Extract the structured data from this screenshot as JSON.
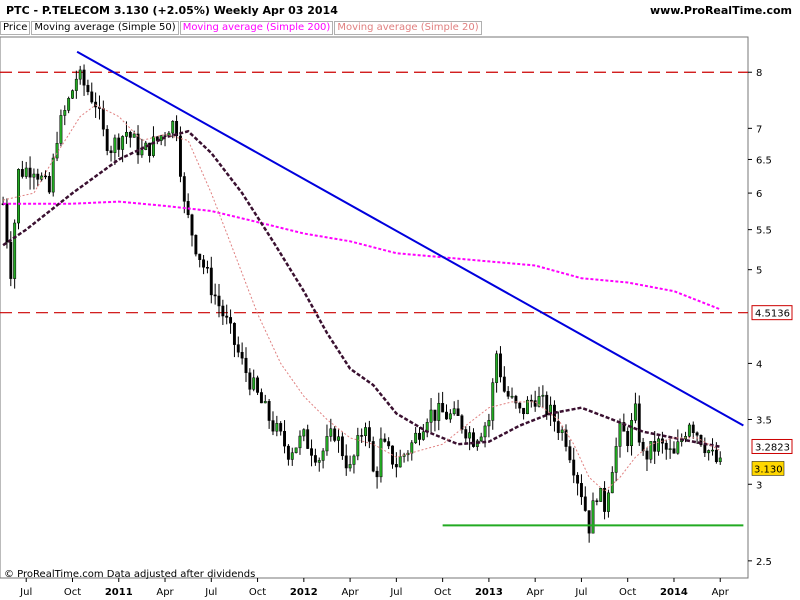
{
  "header": {
    "title": "PTC - P.TELECOM    3.130 (+2.05%)    Weekly  Apr 03 2014",
    "site": "www.ProRealTime.com"
  },
  "legend": [
    {
      "label": "Price",
      "color": "#000000"
    },
    {
      "label": "Moving average (Simple 50)",
      "color": "#000000"
    },
    {
      "label": "Moving average (Simple 200)",
      "color": "#ff00ff"
    },
    {
      "label": "Moving average (Simple 20)",
      "color": "#e08080"
    }
  ],
  "footer": "© ProRealTime.com Data adjusted after dividends",
  "chart_data": {
    "type": "candlestick",
    "y_scale": "log",
    "ylim": [
      2.4,
      8.7
    ],
    "y_ticks": [
      "2.5",
      "3",
      "3.5",
      "4",
      "5",
      "5.5",
      "6",
      "6.5",
      "7",
      "8"
    ],
    "x_ticks": [
      {
        "label": "Jul",
        "t": 0.0,
        "bold": false
      },
      {
        "label": "Oct",
        "t": 3.0,
        "bold": false
      },
      {
        "label": "2011",
        "t": 6.0,
        "bold": true
      },
      {
        "label": "Apr",
        "t": 9.0,
        "bold": false
      },
      {
        "label": "Jul",
        "t": 12.0,
        "bold": false
      },
      {
        "label": "Oct",
        "t": 15.0,
        "bold": false
      },
      {
        "label": "2012",
        "t": 18.0,
        "bold": true
      },
      {
        "label": "Apr",
        "t": 21.0,
        "bold": false
      },
      {
        "label": "Jul",
        "t": 24.0,
        "bold": false
      },
      {
        "label": "Oct",
        "t": 27.0,
        "bold": false
      },
      {
        "label": "2013",
        "t": 30.0,
        "bold": true
      },
      {
        "label": "Apr",
        "t": 33.0,
        "bold": false
      },
      {
        "label": "Jul",
        "t": 36.0,
        "bold": false
      },
      {
        "label": "Oct",
        "t": 39.0,
        "bold": false
      },
      {
        "label": "2014",
        "t": 42.0,
        "bold": true
      },
      {
        "label": "Apr",
        "t": 45.0,
        "bold": false
      }
    ],
    "price_label": {
      "value": 3.13,
      "text": "3.130",
      "bg": "#ffd700"
    },
    "labels": [
      {
        "value": 4.5136,
        "text": "4.5136",
        "color": "#cc0000"
      },
      {
        "value": 3.2823,
        "text": "3.2823",
        "color": "#cc0000"
      }
    ],
    "h_lines": [
      {
        "value": 8.0,
        "color": "#cc0000",
        "dashed": true
      },
      {
        "value": 4.5136,
        "color": "#cc0000",
        "dashed": true
      }
    ],
    "support_line": {
      "t_from": 27.0,
      "t_to": 46.5,
      "value": 2.72,
      "color": "#22aa22"
    },
    "trend_line": {
      "t_from": 3.3,
      "value_from": 8.4,
      "t_to": 46.5,
      "value_to": 3.45,
      "color": "#0000dd"
    },
    "candle_anchors": [
      [
        -1.5,
        5.85
      ],
      [
        -1.0,
        5.0
      ],
      [
        -0.5,
        6.3
      ],
      [
        0.5,
        6.4
      ],
      [
        1.5,
        6.0
      ],
      [
        2.0,
        6.9
      ],
      [
        2.8,
        7.5
      ],
      [
        3.3,
        7.95
      ],
      [
        4.5,
        7.45
      ],
      [
        5.0,
        6.9
      ],
      [
        5.5,
        6.7
      ],
      [
        6.5,
        6.95
      ],
      [
        7.5,
        6.6
      ],
      [
        8.5,
        6.8
      ],
      [
        9.4,
        7.1
      ],
      [
        9.8,
        7.0
      ],
      [
        10.2,
        5.85
      ],
      [
        11.0,
        5.3
      ],
      [
        12.0,
        4.8
      ],
      [
        13.0,
        4.4
      ],
      [
        14.0,
        4.0
      ],
      [
        15.0,
        3.7
      ],
      [
        16.0,
        3.45
      ],
      [
        17.0,
        3.25
      ],
      [
        18.0,
        3.35
      ],
      [
        19.0,
        3.2
      ],
      [
        20.0,
        3.4
      ],
      [
        21.0,
        3.1
      ],
      [
        22.0,
        3.5
      ],
      [
        22.6,
        3.0
      ],
      [
        23.0,
        3.3
      ],
      [
        24.0,
        3.15
      ],
      [
        25.0,
        3.3
      ],
      [
        26.0,
        3.55
      ],
      [
        27.0,
        3.55
      ],
      [
        28.0,
        3.5
      ],
      [
        29.0,
        3.35
      ],
      [
        30.0,
        3.5
      ],
      [
        30.5,
        4.1
      ],
      [
        31.0,
        3.75
      ],
      [
        32.0,
        3.55
      ],
      [
        33.0,
        3.7
      ],
      [
        34.0,
        3.55
      ],
      [
        35.0,
        3.35
      ],
      [
        36.0,
        2.95
      ],
      [
        36.5,
        2.72
      ],
      [
        37.0,
        2.95
      ],
      [
        37.5,
        2.85
      ],
      [
        38.0,
        3.15
      ],
      [
        38.5,
        3.4
      ],
      [
        39.0,
        3.35
      ],
      [
        39.5,
        3.55
      ],
      [
        40.0,
        3.2
      ],
      [
        41.0,
        3.3
      ],
      [
        42.0,
        3.2
      ],
      [
        43.0,
        3.5
      ],
      [
        44.0,
        3.3
      ],
      [
        44.5,
        3.2
      ],
      [
        45.0,
        3.13
      ]
    ],
    "series": [
      {
        "name": "Moving average (Simple 200)",
        "color": "#ff00ff",
        "dash": "3,2",
        "width": 2,
        "points": [
          [
            -1.5,
            5.85
          ],
          [
            3.0,
            5.85
          ],
          [
            6.0,
            5.88
          ],
          [
            9.0,
            5.82
          ],
          [
            12.0,
            5.75
          ],
          [
            15.0,
            5.6
          ],
          [
            18.0,
            5.45
          ],
          [
            21.0,
            5.35
          ],
          [
            24.0,
            5.2
          ],
          [
            27.0,
            5.15
          ],
          [
            30.0,
            5.1
          ],
          [
            33.0,
            5.05
          ],
          [
            36.0,
            4.9
          ],
          [
            39.0,
            4.85
          ],
          [
            42.0,
            4.75
          ],
          [
            45.0,
            4.55
          ]
        ]
      },
      {
        "name": "Moving average (Simple 50)",
        "color": "#3a1030",
        "dash": "4,2",
        "width": 2.5,
        "points": [
          [
            -1.5,
            5.3
          ],
          [
            0.0,
            5.5
          ],
          [
            3.0,
            6.0
          ],
          [
            6.0,
            6.5
          ],
          [
            9.0,
            6.85
          ],
          [
            10.5,
            6.95
          ],
          [
            12.0,
            6.6
          ],
          [
            14.0,
            6.0
          ],
          [
            16.0,
            5.35
          ],
          [
            18.0,
            4.75
          ],
          [
            19.5,
            4.3
          ],
          [
            21.0,
            3.95
          ],
          [
            22.5,
            3.8
          ],
          [
            24.0,
            3.55
          ],
          [
            26.0,
            3.4
          ],
          [
            28.0,
            3.3
          ],
          [
            30.0,
            3.32
          ],
          [
            32.0,
            3.45
          ],
          [
            34.0,
            3.55
          ],
          [
            36.0,
            3.6
          ],
          [
            38.0,
            3.5
          ],
          [
            40.0,
            3.4
          ],
          [
            42.0,
            3.35
          ],
          [
            45.0,
            3.28
          ]
        ]
      },
      {
        "name": "Moving average (Simple 20)",
        "color": "#e08080",
        "dash": "2,2",
        "width": 1,
        "points": [
          [
            -1.5,
            5.9
          ],
          [
            0.5,
            6.0
          ],
          [
            2.0,
            6.6
          ],
          [
            3.5,
            7.2
          ],
          [
            4.5,
            7.4
          ],
          [
            6.0,
            7.2
          ],
          [
            7.5,
            6.8
          ],
          [
            9.0,
            6.9
          ],
          [
            10.5,
            6.8
          ],
          [
            12.0,
            6.0
          ],
          [
            13.5,
            5.2
          ],
          [
            15.0,
            4.5
          ],
          [
            16.5,
            4.0
          ],
          [
            18.0,
            3.7
          ],
          [
            19.5,
            3.5
          ],
          [
            21.0,
            3.35
          ],
          [
            22.5,
            3.3
          ],
          [
            24.0,
            3.2
          ],
          [
            25.5,
            3.25
          ],
          [
            27.0,
            3.3
          ],
          [
            28.5,
            3.45
          ],
          [
            30.0,
            3.6
          ],
          [
            31.5,
            3.65
          ],
          [
            33.0,
            3.65
          ],
          [
            34.5,
            3.5
          ],
          [
            35.5,
            3.3
          ],
          [
            36.5,
            3.05
          ],
          [
            37.5,
            2.95
          ],
          [
            38.5,
            3.05
          ],
          [
            39.5,
            3.2
          ],
          [
            40.5,
            3.3
          ],
          [
            42.0,
            3.35
          ],
          [
            43.5,
            3.35
          ],
          [
            45.0,
            3.25
          ]
        ]
      }
    ]
  }
}
